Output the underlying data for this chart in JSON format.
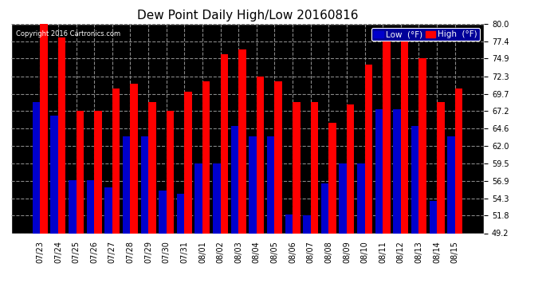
{
  "title": "Dew Point Daily High/Low 20160816",
  "copyright": "Copyright 2016 Cartronics.com",
  "dates": [
    "07/23",
    "07/24",
    "07/25",
    "07/26",
    "07/27",
    "07/28",
    "07/29",
    "07/30",
    "07/31",
    "08/01",
    "08/02",
    "08/03",
    "08/04",
    "08/05",
    "08/06",
    "08/07",
    "08/08",
    "08/09",
    "08/10",
    "08/11",
    "08/12",
    "08/13",
    "08/14",
    "08/15"
  ],
  "high_values": [
    80.0,
    78.0,
    67.2,
    67.2,
    70.5,
    71.2,
    68.5,
    67.2,
    70.0,
    71.5,
    75.5,
    76.2,
    72.3,
    71.5,
    68.5,
    68.5,
    65.5,
    68.2,
    74.0,
    77.5,
    78.0,
    75.0,
    68.5,
    70.5
  ],
  "low_values": [
    68.5,
    66.5,
    57.0,
    57.0,
    56.0,
    63.5,
    63.5,
    55.5,
    55.0,
    59.5,
    59.5,
    65.0,
    63.5,
    63.5,
    52.0,
    51.8,
    56.5,
    59.5,
    59.5,
    67.5,
    67.5,
    65.0,
    54.0,
    63.5
  ],
  "high_color": "#FF0000",
  "low_color": "#0000CC",
  "bg_color": "#FFFFFF",
  "plot_bg_color": "#000000",
  "grid_color": "#888888",
  "ylim_min": 49.2,
  "ylim_max": 80.0,
  "yticks": [
    49.2,
    51.8,
    54.3,
    56.9,
    59.5,
    62.0,
    64.6,
    67.2,
    69.7,
    72.3,
    74.9,
    77.4,
    80.0
  ],
  "bar_width": 0.42,
  "title_fontsize": 11,
  "tick_fontsize": 7,
  "legend_fontsize": 7.5
}
